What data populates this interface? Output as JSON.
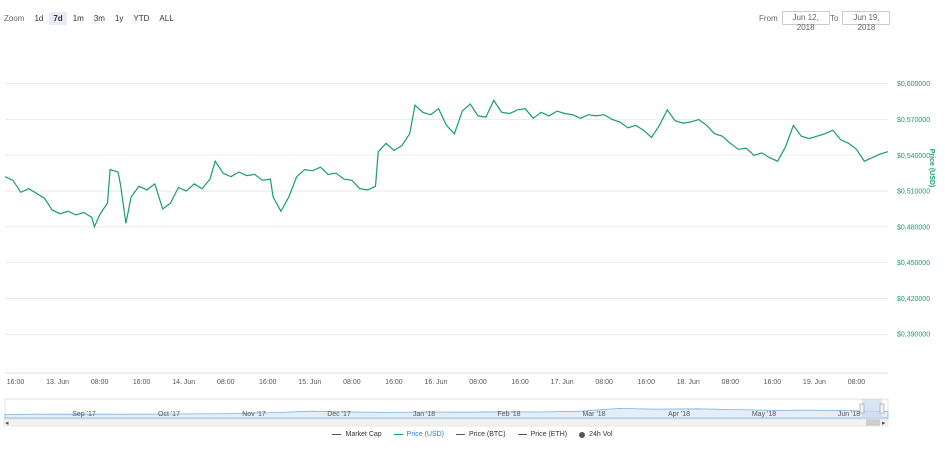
{
  "zoom": {
    "label": "Zoom",
    "buttons": [
      "1d",
      "7d",
      "1m",
      "3m",
      "1y",
      "YTD",
      "ALL"
    ],
    "active": "7d"
  },
  "range": {
    "from_label": "From",
    "from_value": "Jun 12, 2018",
    "to_label": "To",
    "to_value": "Jun 19, 2018"
  },
  "chart_data": {
    "type": "line",
    "ylabel": "Price (USD)",
    "y_ticks": [
      "$0,600000",
      "$0,570000",
      "$0,540000",
      "$0,510000",
      "$0,480000",
      "$0,450000",
      "$0,420000",
      "$0,390000"
    ],
    "ylim": [
      0.3575,
      0.645
    ],
    "x_ticks": [
      "16:00",
      "13. Jun",
      "08:00",
      "16:00",
      "14. Jun",
      "08:00",
      "16:00",
      "15. Jun",
      "08:00",
      "16:00",
      "16. Jun",
      "08:00",
      "16:00",
      "17. Jun",
      "08:00",
      "16:00",
      "18. Jun",
      "08:00",
      "16:00",
      "19. Jun",
      "08:00"
    ],
    "xlim": [
      0,
      168
    ],
    "grid": true,
    "series": [
      {
        "name": "Price (USD)",
        "color": "#1a9e66",
        "points": [
          [
            0,
            0.522
          ],
          [
            1.5,
            0.519
          ],
          [
            3,
            0.509
          ],
          [
            4.5,
            0.512
          ],
          [
            6,
            0.508
          ],
          [
            7.5,
            0.504
          ],
          [
            9,
            0.494
          ],
          [
            10.5,
            0.491
          ],
          [
            12,
            0.493
          ],
          [
            13.5,
            0.49
          ],
          [
            15,
            0.492
          ],
          [
            16.5,
            0.488
          ],
          [
            17,
            0.48
          ],
          [
            18,
            0.49
          ],
          [
            19.5,
            0.5
          ],
          [
            20,
            0.528
          ],
          [
            21.5,
            0.526
          ],
          [
            22,
            0.515
          ],
          [
            23,
            0.483
          ],
          [
            24,
            0.505
          ],
          [
            25.5,
            0.514
          ],
          [
            27,
            0.511
          ],
          [
            28.5,
            0.516
          ],
          [
            30,
            0.495
          ],
          [
            31.5,
            0.5
          ],
          [
            33,
            0.513
          ],
          [
            34.5,
            0.51
          ],
          [
            36,
            0.516
          ],
          [
            37.5,
            0.512
          ],
          [
            39,
            0.52
          ],
          [
            40,
            0.535
          ],
          [
            41.5,
            0.525
          ],
          [
            43,
            0.522
          ],
          [
            44.5,
            0.526
          ],
          [
            46,
            0.523
          ],
          [
            47.5,
            0.524
          ],
          [
            49,
            0.519
          ],
          [
            50.5,
            0.52
          ],
          [
            51,
            0.505
          ],
          [
            52.5,
            0.493
          ],
          [
            54,
            0.505
          ],
          [
            55.5,
            0.522
          ],
          [
            57,
            0.528
          ],
          [
            58.5,
            0.527
          ],
          [
            60,
            0.53
          ],
          [
            61.5,
            0.524
          ],
          [
            63,
            0.525
          ],
          [
            64.5,
            0.52
          ],
          [
            66,
            0.519
          ],
          [
            67.5,
            0.512
          ],
          [
            69,
            0.511
          ],
          [
            70.5,
            0.514
          ],
          [
            71,
            0.543
          ],
          [
            72.5,
            0.55
          ],
          [
            74,
            0.544
          ],
          [
            75.5,
            0.548
          ],
          [
            77,
            0.558
          ],
          [
            78,
            0.582
          ],
          [
            79.5,
            0.576
          ],
          [
            81,
            0.574
          ],
          [
            82.5,
            0.579
          ],
          [
            84,
            0.565
          ],
          [
            85.5,
            0.558
          ],
          [
            87,
            0.577
          ],
          [
            88.5,
            0.583
          ],
          [
            90,
            0.573
          ],
          [
            91.5,
            0.572
          ],
          [
            93,
            0.586
          ],
          [
            94.5,
            0.576
          ],
          [
            96,
            0.575
          ],
          [
            97.5,
            0.578
          ],
          [
            99,
            0.579
          ],
          [
            100.5,
            0.571
          ],
          [
            102,
            0.576
          ],
          [
            103.5,
            0.573
          ],
          [
            105,
            0.577
          ],
          [
            106.5,
            0.575
          ],
          [
            108,
            0.574
          ],
          [
            109.5,
            0.571
          ],
          [
            111,
            0.574
          ],
          [
            112.5,
            0.573
          ],
          [
            114,
            0.574
          ],
          [
            115.5,
            0.57
          ],
          [
            117,
            0.568
          ],
          [
            118.5,
            0.563
          ],
          [
            120,
            0.565
          ],
          [
            121.5,
            0.561
          ],
          [
            123,
            0.555
          ],
          [
            124.5,
            0.565
          ],
          [
            126,
            0.578
          ],
          [
            127.5,
            0.569
          ],
          [
            129,
            0.567
          ],
          [
            130.5,
            0.568
          ],
          [
            132,
            0.57
          ],
          [
            133.5,
            0.565
          ],
          [
            135,
            0.558
          ],
          [
            136.5,
            0.556
          ],
          [
            138,
            0.55
          ],
          [
            139.5,
            0.545
          ],
          [
            141,
            0.546
          ],
          [
            142.5,
            0.54
          ],
          [
            144,
            0.542
          ],
          [
            145.5,
            0.538
          ],
          [
            147,
            0.535
          ],
          [
            148.5,
            0.547
          ],
          [
            150,
            0.565
          ],
          [
            151.5,
            0.556
          ],
          [
            153,
            0.554
          ],
          [
            154.5,
            0.556
          ],
          [
            156,
            0.558
          ],
          [
            157.5,
            0.561
          ],
          [
            159,
            0.553
          ],
          [
            160.5,
            0.55
          ],
          [
            162,
            0.545
          ],
          [
            163.5,
            0.535
          ],
          [
            165,
            0.538
          ],
          [
            166.5,
            0.541
          ],
          [
            168,
            0.543
          ]
        ]
      }
    ],
    "navigator": {
      "ticks": [
        "Sep '17",
        "Oct '17",
        "Nov '17",
        "Dec '17",
        "Jan '18",
        "Feb '18",
        "Mar '18",
        "Apr '18",
        "May '18",
        "Jun '18"
      ],
      "values": [
        0.2,
        0.22,
        0.21,
        0.23,
        0.24,
        0.26,
        0.3,
        0.42,
        0.6,
        0.5,
        0.45,
        0.5,
        0.48,
        0.52,
        0.5,
        0.6,
        0.95,
        0.85,
        0.9,
        0.8,
        0.7,
        0.72,
        0.68,
        0.55
      ]
    }
  },
  "legend": [
    {
      "label": "Market Cap",
      "color": "#555555",
      "type": "line"
    },
    {
      "label": "Price (USD)",
      "color": "#1a9e66",
      "type": "line"
    },
    {
      "label": "Price (BTC)",
      "color": "#555555",
      "type": "line"
    },
    {
      "label": "Price (ETH)",
      "color": "#555555",
      "type": "line"
    },
    {
      "label": "24h Vol",
      "color": "#555555",
      "type": "dot"
    }
  ]
}
